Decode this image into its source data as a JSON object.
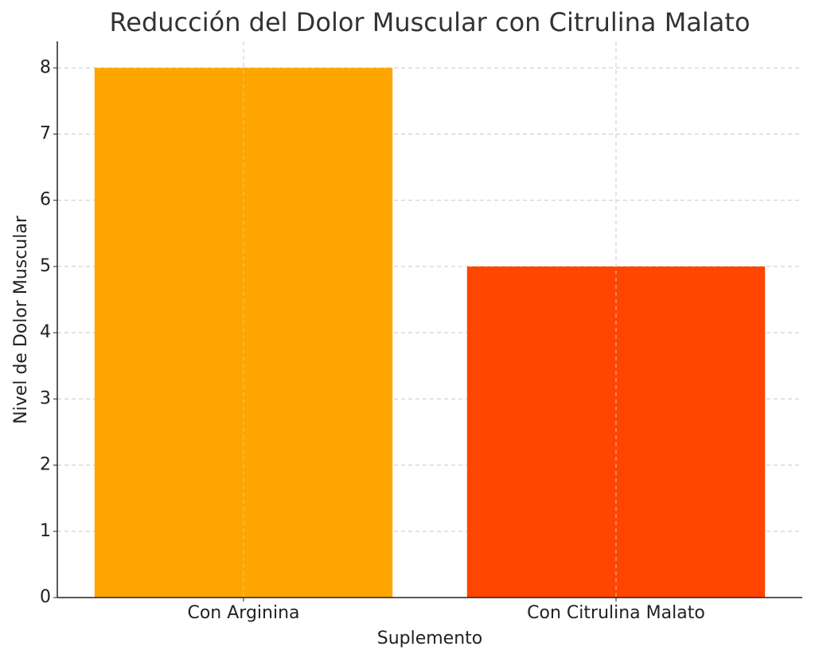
{
  "chart_data": {
    "type": "bar",
    "title": "Reducción del Dolor Muscular con Citrulina Malato",
    "x_label": "Suplemento",
    "y_label": "Nivel de Dolor Muscular",
    "categories": [
      "Con Arginina",
      "Con Citrulina Malato"
    ],
    "values": [
      8,
      5
    ],
    "colors": [
      "#ffa500",
      "#ff4500"
    ],
    "ylim": [
      0,
      8.4
    ],
    "yticks": [
      0,
      1,
      2,
      3,
      4,
      5,
      6,
      7,
      8
    ],
    "grid": true
  }
}
